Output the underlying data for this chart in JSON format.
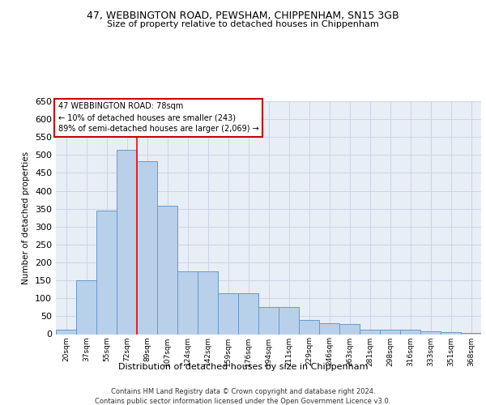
{
  "title1": "47, WEBBINGTON ROAD, PEWSHAM, CHIPPENHAM, SN15 3GB",
  "title2": "Size of property relative to detached houses in Chippenham",
  "xlabel": "Distribution of detached houses by size in Chippenham",
  "ylabel": "Number of detached properties",
  "categories": [
    "20sqm",
    "37sqm",
    "55sqm",
    "72sqm",
    "89sqm",
    "107sqm",
    "124sqm",
    "142sqm",
    "159sqm",
    "176sqm",
    "194sqm",
    "211sqm",
    "229sqm",
    "246sqm",
    "263sqm",
    "281sqm",
    "298sqm",
    "316sqm",
    "333sqm",
    "351sqm",
    "368sqm"
  ],
  "values": [
    13,
    150,
    345,
    515,
    483,
    358,
    175,
    175,
    115,
    115,
    75,
    75,
    40,
    30,
    28,
    13,
    13,
    13,
    7,
    5,
    4
  ],
  "bar_color": "#b8d0ea",
  "bar_edge_color": "#6699cc",
  "grid_color": "#ccd5e5",
  "background_color": "#e8eef6",
  "red_line_x": 3.5,
  "annotation_text": "47 WEBBINGTON ROAD: 78sqm\n← 10% of detached houses are smaller (243)\n89% of semi-detached houses are larger (2,069) →",
  "annotation_box_color": "#ffffff",
  "annotation_box_edge": "#cc0000",
  "footnote1": "Contains HM Land Registry data © Crown copyright and database right 2024.",
  "footnote2": "Contains public sector information licensed under the Open Government Licence v3.0.",
  "ylim": [
    0,
    650
  ],
  "yticks": [
    0,
    50,
    100,
    150,
    200,
    250,
    300,
    350,
    400,
    450,
    500,
    550,
    600,
    650
  ]
}
